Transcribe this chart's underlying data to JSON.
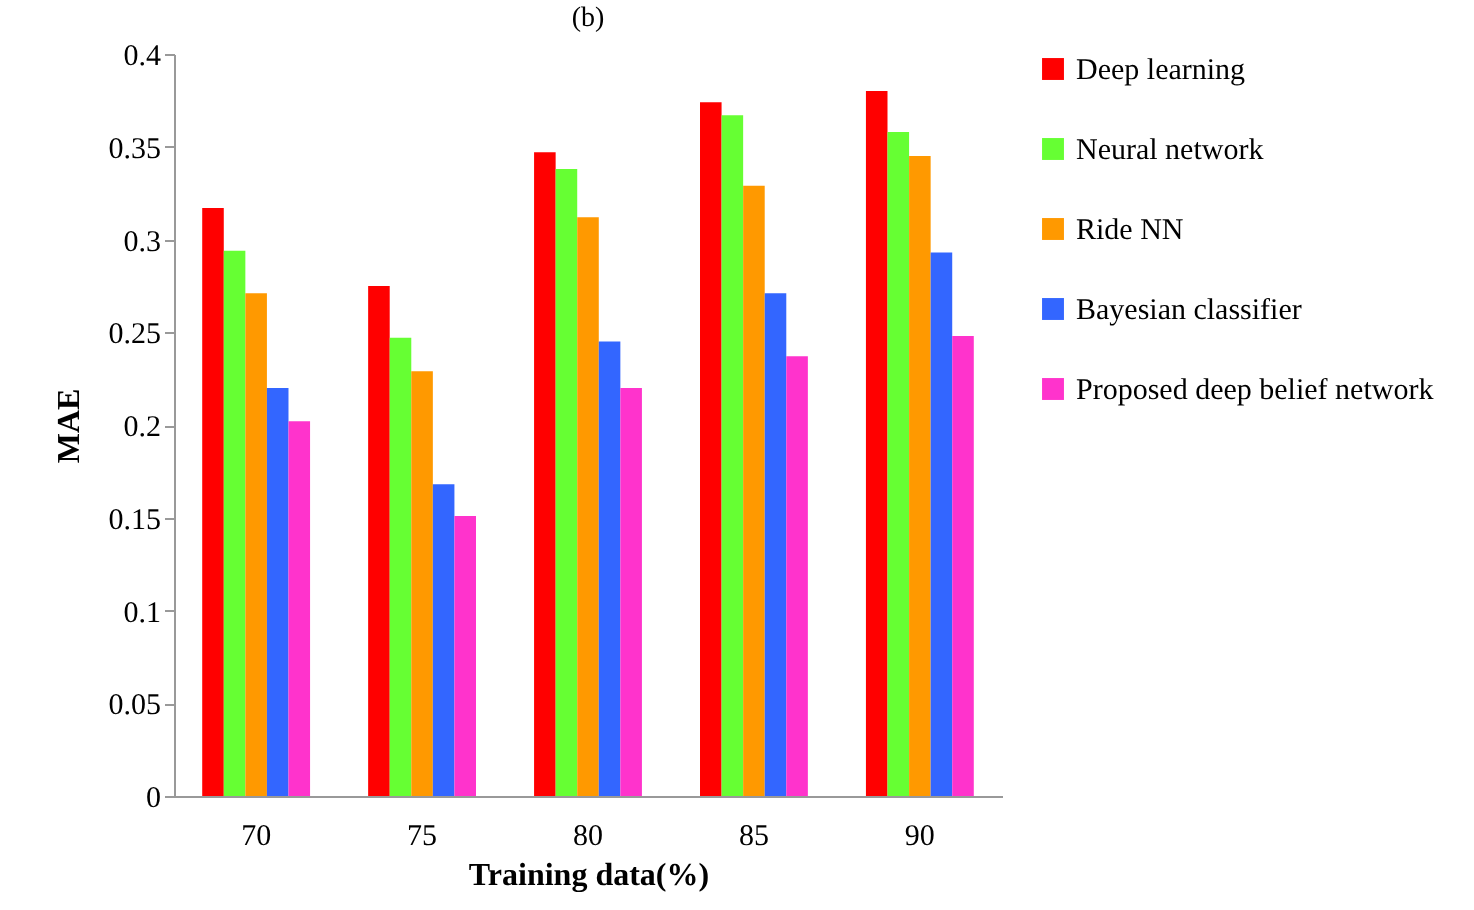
{
  "chart_data": {
    "type": "bar",
    "title": "(b)",
    "xlabel": "Training data(%)",
    "ylabel": "MAE",
    "categories": [
      "70",
      "75",
      "80",
      "85",
      "90"
    ],
    "series": [
      {
        "name": "Deep learning",
        "color": "#ff0000",
        "values": [
          0.317,
          0.275,
          0.347,
          0.374,
          0.38
        ]
      },
      {
        "name": "Neural network",
        "color": "#66ff33",
        "values": [
          0.294,
          0.247,
          0.338,
          0.367,
          0.358
        ]
      },
      {
        "name": "Ride NN",
        "color": "#ff9900",
        "values": [
          0.271,
          0.229,
          0.312,
          0.329,
          0.345
        ]
      },
      {
        "name": "Bayesian classifier",
        "color": "#3366ff",
        "values": [
          0.22,
          0.168,
          0.245,
          0.271,
          0.293
        ]
      },
      {
        "name": "Proposed deep belief network",
        "color": "#ff33cc",
        "values": [
          0.202,
          0.151,
          0.22,
          0.237,
          0.248
        ]
      }
    ],
    "ylim": [
      0,
      0.4
    ],
    "yticks": [
      0,
      0.05,
      0.1,
      0.15,
      0.2,
      0.25,
      0.3,
      0.35,
      0.4
    ],
    "grid": false,
    "legend": "right"
  }
}
